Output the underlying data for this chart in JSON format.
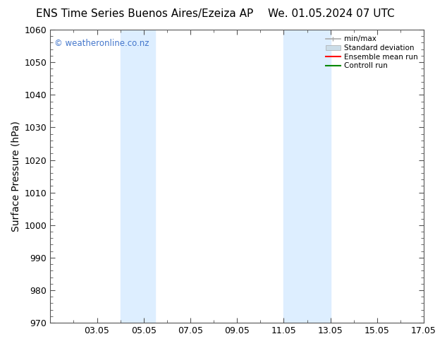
{
  "title_left": "ENS Time Series Buenos Aires/Ezeiza AP",
  "title_right": "We. 01.05.2024 07 UTC",
  "ylabel": "Surface Pressure (hPa)",
  "ylim": [
    970,
    1060
  ],
  "yticks": [
    970,
    980,
    990,
    1000,
    1010,
    1020,
    1030,
    1040,
    1050,
    1060
  ],
  "xlim": [
    1,
    17
  ],
  "xtick_labels": [
    "03.05",
    "05.05",
    "07.05",
    "09.05",
    "11.05",
    "13.05",
    "15.05",
    "17.05"
  ],
  "xtick_positions": [
    3,
    5,
    7,
    9,
    11,
    13,
    15,
    17
  ],
  "shaded_regions": [
    {
      "x_start": 4.0,
      "x_end": 5.5,
      "color": "#ddeeff"
    },
    {
      "x_start": 11.0,
      "x_end": 13.0,
      "color": "#ddeeff"
    }
  ],
  "watermark": "© weatheronline.co.nz",
  "watermark_color": "#4477cc",
  "background_color": "#ffffff",
  "spine_color": "#555555",
  "tick_color": "#555555",
  "title_fontsize": 11,
  "label_fontsize": 9,
  "ylabel_fontsize": 10
}
